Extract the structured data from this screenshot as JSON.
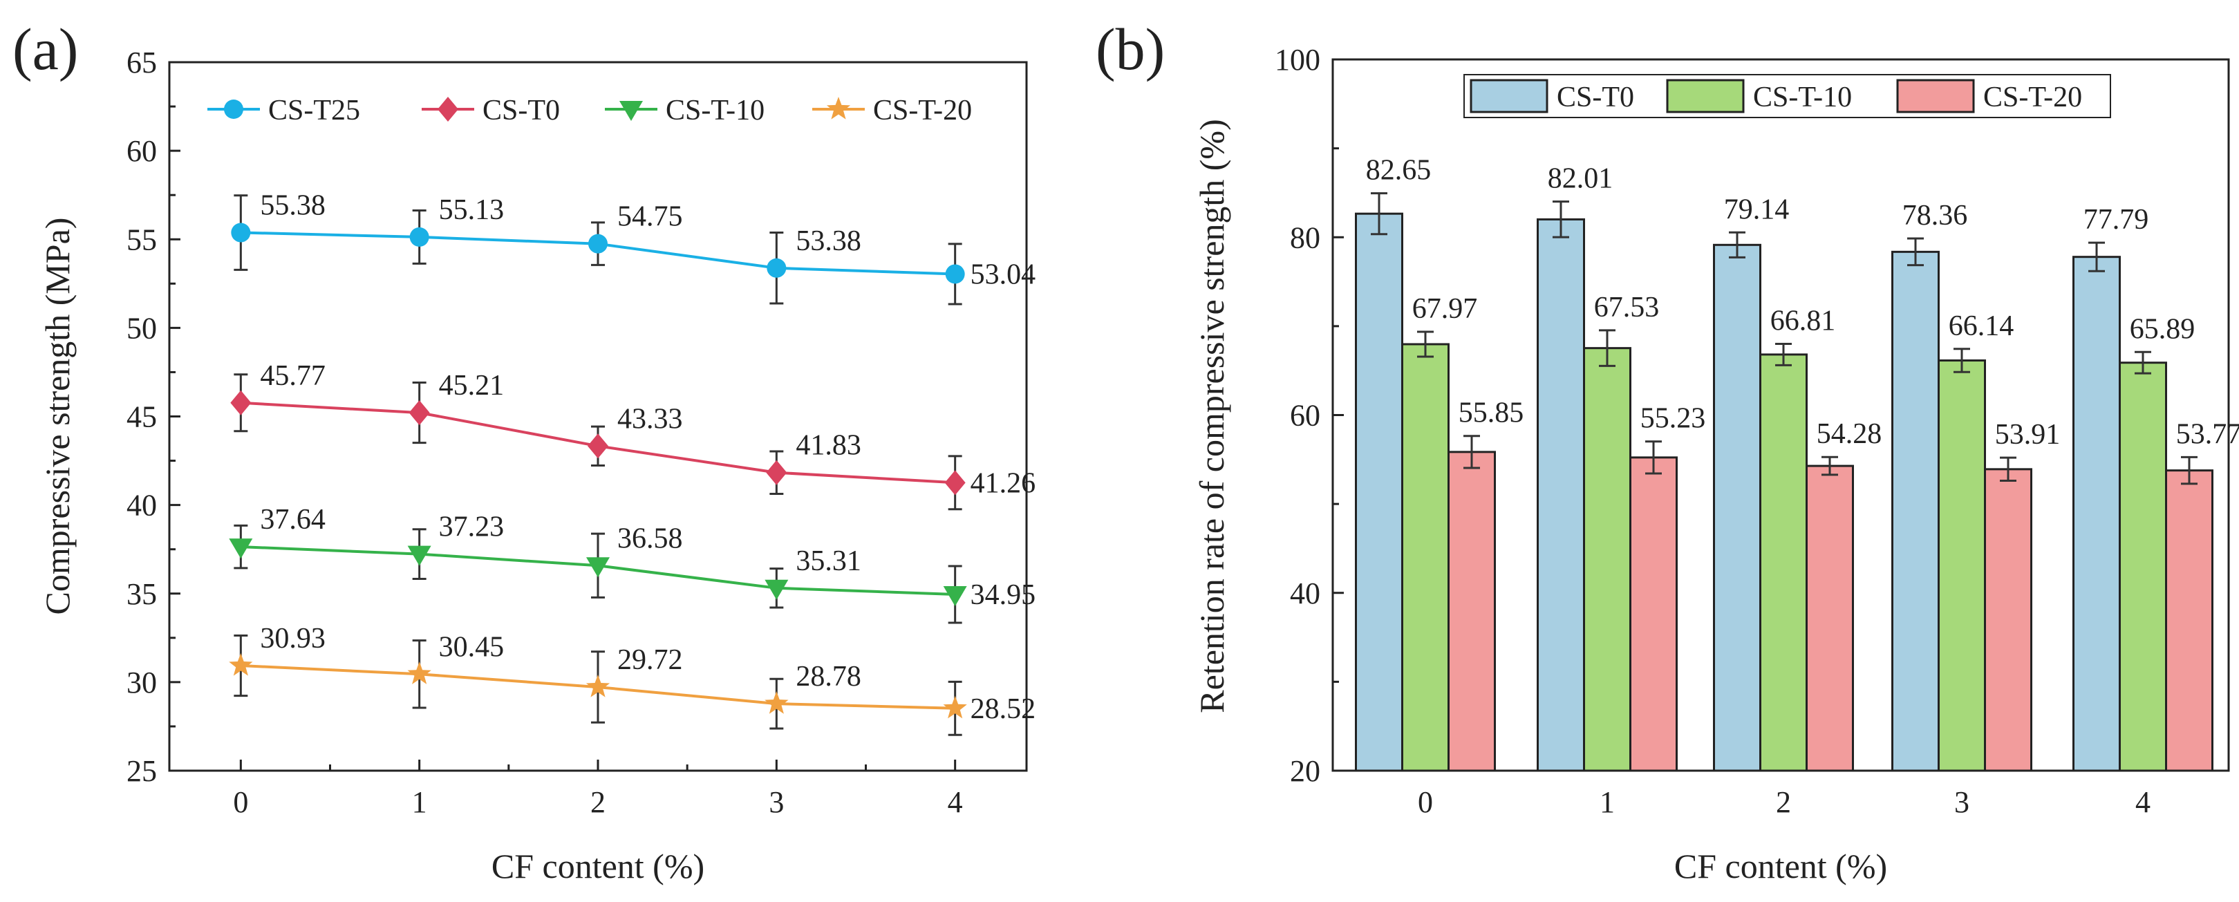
{
  "chart_data": [
    {
      "type": "line",
      "panel_label": "(a)",
      "xlabel": "CF content (%)",
      "ylabel": "Compressive strength (MPa)",
      "x": [
        0,
        1,
        2,
        3,
        4
      ],
      "x_tick_labels": [
        "0",
        "1",
        "2",
        "3",
        "4"
      ],
      "xlim": [
        -0.4,
        4.4
      ],
      "ylim": [
        25,
        65
      ],
      "y_tick_labels": [
        "25",
        "30",
        "35",
        "40",
        "45",
        "50",
        "55",
        "60",
        "65"
      ],
      "legend": "top",
      "series": [
        {
          "name": "CS-T25",
          "color": "#1ab0e5",
          "marker": "circle",
          "values": [
            55.38,
            55.13,
            54.75,
            53.38,
            53.04
          ],
          "errors": [
            2.1,
            1.5,
            1.2,
            2.0,
            1.7
          ],
          "labels": [
            "55.38",
            "55.13",
            "54.75",
            "53.38",
            "53.04"
          ]
        },
        {
          "name": "CS-T0",
          "color": "#d9425e",
          "marker": "diamond",
          "values": [
            45.77,
            45.21,
            43.33,
            41.83,
            41.26
          ],
          "errors": [
            1.6,
            1.7,
            1.1,
            1.2,
            1.5
          ],
          "labels": [
            "45.77",
            "45.21",
            "43.33",
            "41.83",
            "41.26"
          ]
        },
        {
          "name": "CS-T-10",
          "color": "#35b24a",
          "marker": "triangle-down",
          "values": [
            37.64,
            37.23,
            36.58,
            35.31,
            34.95
          ],
          "errors": [
            1.2,
            1.4,
            1.8,
            1.1,
            1.6
          ],
          "labels": [
            "37.64",
            "37.23",
            "36.58",
            "35.31",
            "34.95"
          ]
        },
        {
          "name": "CS-T-20",
          "color": "#f0a040",
          "marker": "star",
          "values": [
            30.93,
            30.45,
            29.72,
            28.78,
            28.52
          ],
          "errors": [
            1.7,
            1.9,
            2.0,
            1.4,
            1.5
          ],
          "labels": [
            "30.93",
            "30.45",
            "29.72",
            "28.78",
            "28.52"
          ]
        }
      ]
    },
    {
      "type": "bar",
      "panel_label": "(b)",
      "xlabel": "CF content (%)",
      "ylabel": "Retention rate of compressive strength (%)",
      "categories": [
        "0",
        "1",
        "2",
        "3",
        "4"
      ],
      "ylim": [
        20,
        100
      ],
      "y_tick_labels": [
        "20",
        "40",
        "60",
        "80",
        "100"
      ],
      "legend": "top",
      "series": [
        {
          "name": "CS-T0",
          "color": "#a8cfe2",
          "values": [
            82.65,
            82.01,
            79.14,
            78.36,
            77.79
          ],
          "errors": [
            2.3,
            2.0,
            1.4,
            1.5,
            1.6
          ],
          "labels": [
            "82.65",
            "82.01",
            "79.14",
            "78.36",
            "77.79"
          ]
        },
        {
          "name": "CS-T-10",
          "color": "#a6d97a",
          "values": [
            67.97,
            67.53,
            66.81,
            66.14,
            65.89
          ],
          "errors": [
            1.4,
            2.0,
            1.2,
            1.3,
            1.2
          ],
          "labels": [
            "67.97",
            "67.53",
            "66.81",
            "66.14",
            "65.89"
          ]
        },
        {
          "name": "CS-T-20",
          "color": "#f29c9c",
          "values": [
            55.85,
            55.23,
            54.28,
            53.91,
            53.77
          ],
          "errors": [
            1.8,
            1.8,
            1.0,
            1.3,
            1.5
          ],
          "labels": [
            "55.85",
            "55.23",
            "54.28",
            "53.91",
            "53.77"
          ]
        }
      ]
    }
  ]
}
